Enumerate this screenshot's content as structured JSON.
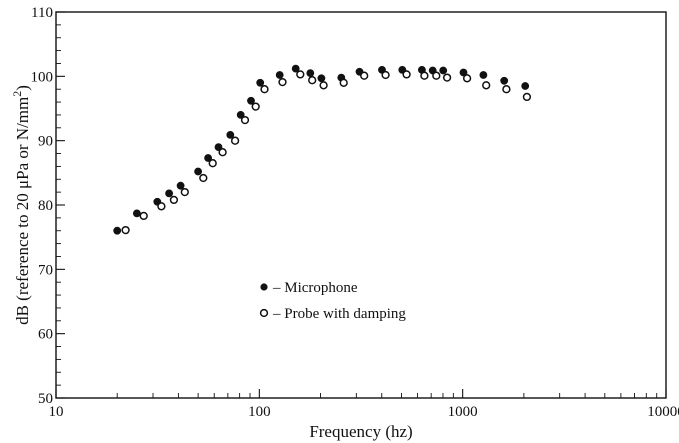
{
  "chart_data": {
    "type": "scatter",
    "xscale": "log",
    "xlim": [
      10,
      10000
    ],
    "ylim": [
      50,
      110
    ],
    "x_ticks": [
      10,
      100,
      1000,
      10000
    ],
    "x_tick_labels": [
      "10",
      "100",
      "1000",
      "10000"
    ],
    "y_ticks": [
      50,
      60,
      70,
      80,
      90,
      100,
      110
    ],
    "y_tick_labels": [
      "50",
      "60",
      "70",
      "80",
      "90",
      "100",
      "110"
    ],
    "xlabel": "Frequency (hz)",
    "ylabel": "dB (reference to 20 μPa or N/mm",
    "ylabel_sup": "2",
    "ylabel_close": ")",
    "grid": false,
    "legend_position": "center-left",
    "series": [
      {
        "name": "– Microphone",
        "marker": "filled-circle",
        "color": "#111111",
        "x": [
          20,
          25,
          31.5,
          36,
          41,
          50,
          56,
          63,
          72,
          81,
          91,
          101,
          126,
          151,
          178,
          202,
          253,
          311,
          401,
          505,
          630,
          712,
          802,
          1010,
          1265,
          1600,
          2030
        ],
        "y": [
          76,
          78.7,
          80.5,
          81.8,
          83,
          85.2,
          87.3,
          89,
          90.9,
          94,
          96.2,
          99,
          100.2,
          101.2,
          100.5,
          99.7,
          99.8,
          100.7,
          101,
          101,
          101,
          100.9,
          100.9,
          100.6,
          100.2,
          99.3,
          98.5
        ]
      },
      {
        "name": "– Probe with damping",
        "marker": "open-circle",
        "color": "#111111",
        "x": [
          22,
          27,
          33,
          38,
          43,
          53,
          59,
          66,
          76,
          85,
          96,
          106,
          130,
          159,
          182,
          207,
          260,
          328,
          418,
          530,
          648,
          742,
          838,
          1051,
          1305,
          1640,
          2070
        ],
        "y": [
          76.1,
          78.3,
          79.8,
          80.8,
          82,
          84.2,
          86.5,
          88.2,
          90,
          93.2,
          95.3,
          98,
          99.1,
          100.3,
          99.4,
          98.6,
          99,
          100.1,
          100.2,
          100.3,
          100.1,
          100.1,
          99.8,
          99.7,
          98.6,
          98,
          96.8
        ]
      }
    ]
  }
}
